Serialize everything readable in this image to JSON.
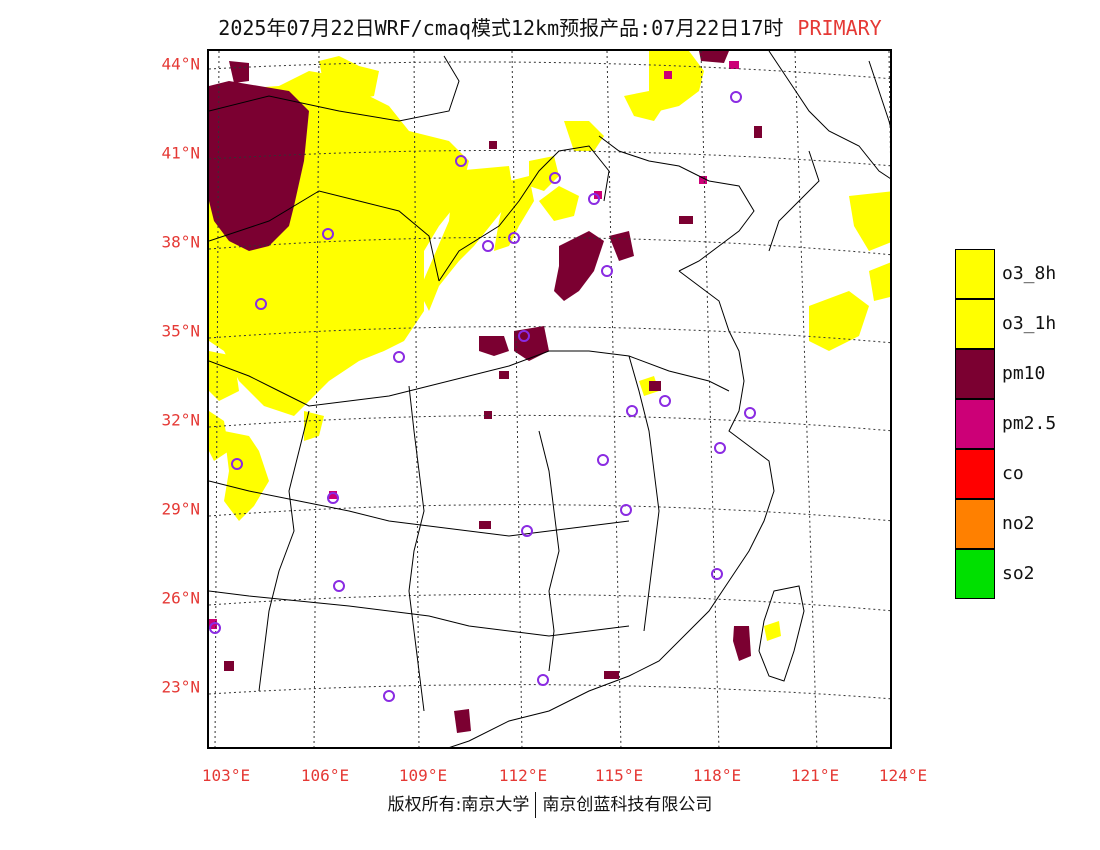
{
  "title": {
    "main": "2025年07月22日WRF/cmaq模式12km预报产品:07月22日17时",
    "tag": "PRIMARY"
  },
  "axes": {
    "lat_labels": [
      "44°N",
      "41°N",
      "38°N",
      "35°N",
      "32°N",
      "29°N",
      "26°N",
      "23°N"
    ],
    "lon_labels": [
      "103°E",
      "106°E",
      "109°E",
      "112°E",
      "115°E",
      "118°E",
      "121°E",
      "124°E"
    ]
  },
  "legend": [
    {
      "label": "o3_8h",
      "color": "#ffff00"
    },
    {
      "label": "o3_1h",
      "color": "#ffff00"
    },
    {
      "label": "pm10",
      "color": "#7b0031"
    },
    {
      "label": "pm2.5",
      "color": "#cc0077"
    },
    {
      "label": "co",
      "color": "#ff0000"
    },
    {
      "label": "no2",
      "color": "#ff8000"
    },
    {
      "label": "so2",
      "color": "#00e000"
    }
  ],
  "footer": {
    "left": "版权所有:南京大学",
    "right": "南京创蓝科技有限公司"
  },
  "colors": {
    "o3": "#ffff00",
    "pm10": "#7b0031",
    "pm25": "#cc0077",
    "station": "#8a2be2",
    "axis_label": "#e53935"
  }
}
